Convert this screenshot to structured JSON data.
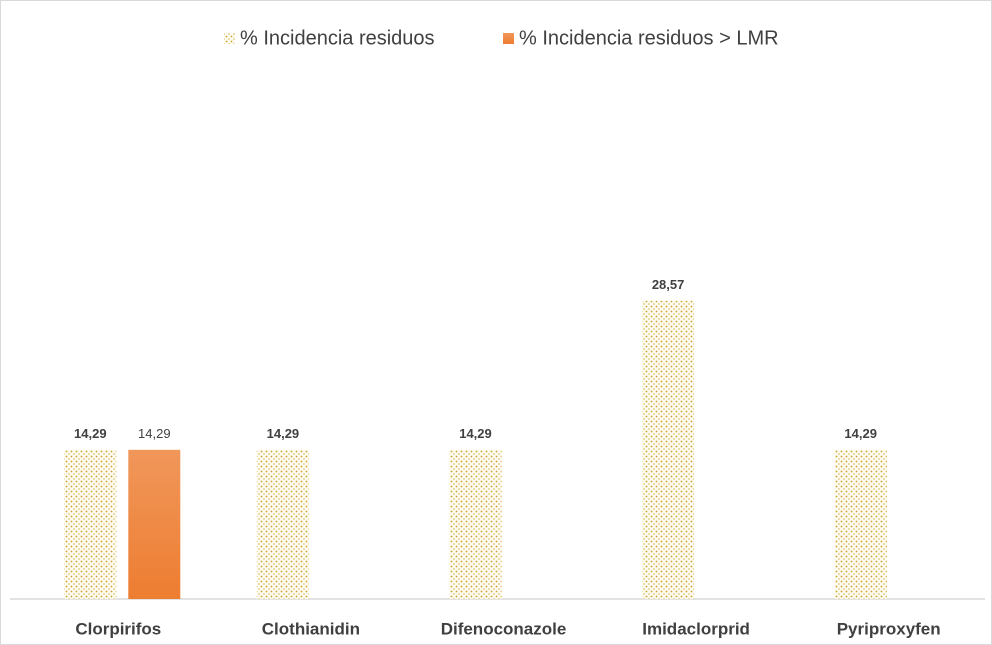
{
  "chart_data": {
    "type": "bar",
    "categories": [
      "Clorpirifos",
      "Clothianidin",
      "Difenoconazole",
      "Imidaclorprid",
      "Pyriproxyfen"
    ],
    "series": [
      {
        "name": "% Incidencia residuos",
        "color": "#c9a227",
        "pattern": "dots",
        "values": [
          14.29,
          14.29,
          14.29,
          28.57,
          14.29
        ],
        "value_labels": [
          "14,29",
          "14,29",
          "14,29",
          "28,57",
          "14,29"
        ]
      },
      {
        "name": "% Incidencia residuos > LMR",
        "color": "#ed7d31",
        "values": [
          14.29,
          0,
          0,
          0,
          0
        ],
        "value_labels": [
          "14,29",
          null,
          null,
          null,
          null
        ]
      }
    ],
    "ylim": [
      0,
      50
    ],
    "grid": false,
    "legend": "top"
  }
}
